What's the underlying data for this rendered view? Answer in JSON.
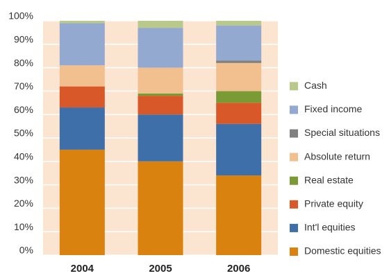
{
  "chart_data": {
    "type": "stacked_bar",
    "categories": [
      "2004",
      "2005",
      "2006"
    ],
    "series": [
      {
        "name": "Domestic equities",
        "color": "#d9820f",
        "values": [
          45,
          40,
          34
        ]
      },
      {
        "name": "Int'l equities",
        "color": "#3f6fa8",
        "values": [
          18,
          20,
          22
        ]
      },
      {
        "name": "Private equity",
        "color": "#d9582a",
        "values": [
          9,
          8,
          9
        ]
      },
      {
        "name": "Real estate",
        "color": "#7a9a36",
        "values": [
          0,
          1,
          5
        ]
      },
      {
        "name": "Absolute return",
        "color": "#f2c08e",
        "values": [
          9,
          11,
          12
        ]
      },
      {
        "name": "Special situations",
        "color": "#808080",
        "values": [
          0,
          0,
          1
        ]
      },
      {
        "name": "Fixed income",
        "color": "#93a9cf",
        "values": [
          18,
          17,
          15
        ]
      },
      {
        "name": "Cash",
        "color": "#b9c98b",
        "values": [
          1,
          3,
          2
        ]
      }
    ],
    "ylim": [
      0,
      100
    ],
    "yticks": [
      {
        "value": 0,
        "label": "0%"
      },
      {
        "value": 10,
        "label": "10%"
      },
      {
        "value": 20,
        "label": "20%"
      },
      {
        "value": 30,
        "label": "30%"
      },
      {
        "value": 40,
        "label": "40%"
      },
      {
        "value": 50,
        "label": "50%"
      },
      {
        "value": 60,
        "label": "60%"
      },
      {
        "value": 70,
        "label": "70%"
      },
      {
        "value": 80,
        "label": "80%"
      },
      {
        "value": 90,
        "label": "90%"
      },
      {
        "value": 100,
        "label": "100%"
      }
    ],
    "grid": true
  }
}
